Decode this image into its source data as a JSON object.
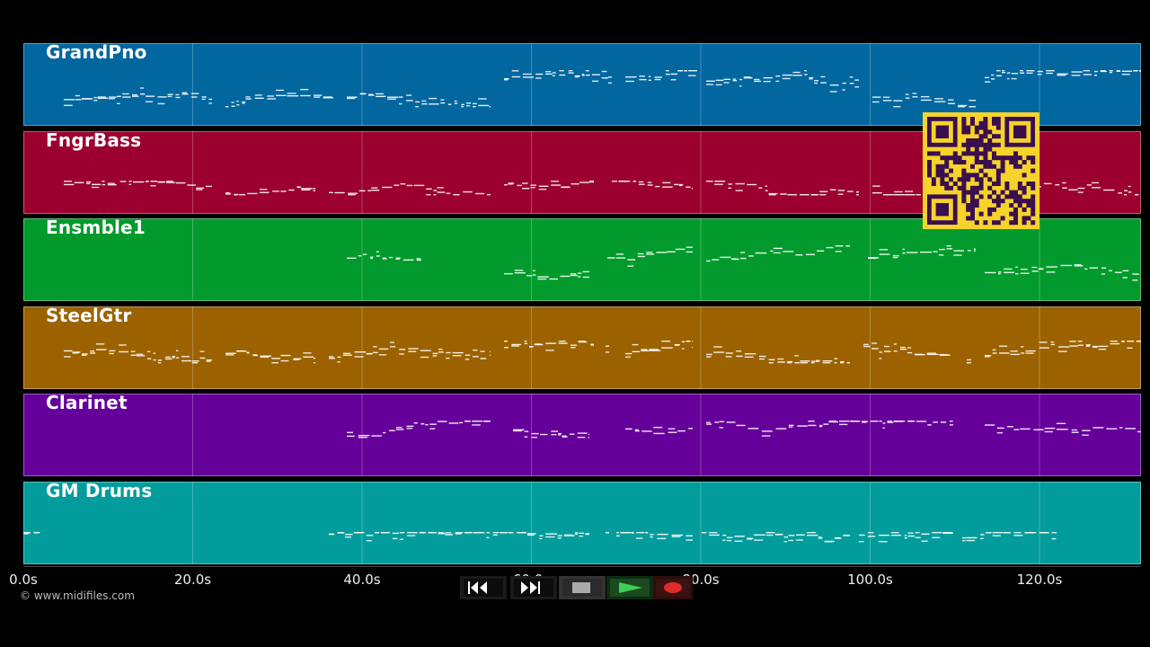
{
  "tracks": [
    {
      "name": "GrandPno",
      "color": "#02669f"
    },
    {
      "name": "FngrBass",
      "color": "#9b002e"
    },
    {
      "name": "Ensmble1",
      "color": "#029a2c"
    },
    {
      "name": "SteelGtr",
      "color": "#9c6200"
    },
    {
      "name": "Clarinet",
      "color": "#65009a"
    },
    {
      "name": "GM Drums",
      "color": "#039c9c"
    }
  ],
  "timeline": {
    "ticks": [
      "0.0s",
      "20.0s",
      "40.0s",
      "60.0s",
      "80.0s",
      "100.0s",
      "120.0s"
    ]
  },
  "copyright": "© www.midifiles.com",
  "transport": {
    "buttons": [
      {
        "name": "rewind",
        "icon": "rewind-icon"
      },
      {
        "name": "fast-forward",
        "icon": "fast-forward-icon"
      },
      {
        "name": "stop",
        "icon": "stop-icon"
      },
      {
        "name": "play",
        "icon": "play-icon"
      },
      {
        "name": "record",
        "icon": "record-icon"
      }
    ]
  },
  "qr_code": {
    "color": "#f5d32a",
    "dark": "#3a0e4f"
  }
}
